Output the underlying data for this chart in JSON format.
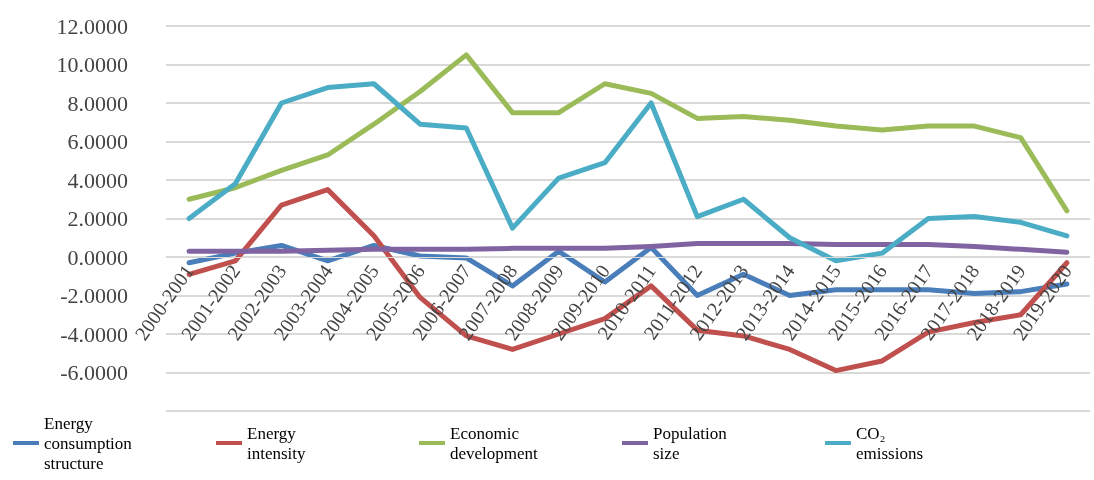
{
  "chart_data": {
    "type": "line",
    "categories": [
      "2000-2001",
      "2001-2002",
      "2002-2003",
      "2003-2004",
      "2004-2005",
      "2005-2006",
      "2006-2007",
      "2007-2008",
      "2008-2009",
      "2009-2010",
      "2010-2011",
      "2011-2012",
      "2012-2013",
      "2013-2014",
      "2014-2015",
      "2015-2016",
      "2016-2017",
      "2017-2018",
      "2018-2019",
      "2019-2020"
    ],
    "series": [
      {
        "name": "Energy consumption structure",
        "color": "#4a7ebb",
        "values": [
          -0.3,
          0.2,
          0.6,
          -0.2,
          0.6,
          0.05,
          -0.05,
          -1.5,
          0.3,
          -1.3,
          0.5,
          -2.0,
          -0.9,
          -2.0,
          -1.7,
          -1.7,
          -1.7,
          -1.9,
          -1.8,
          -1.4
        ]
      },
      {
        "name": "Energy intensity",
        "color": "#c0504d",
        "values": [
          -0.9,
          -0.2,
          2.7,
          3.5,
          1.1,
          -2.1,
          -4.1,
          -4.8,
          -4.0,
          -3.2,
          -1.5,
          -3.8,
          -4.1,
          -4.8,
          -5.9,
          -5.4,
          -3.9,
          -3.4,
          -3.0,
          -0.3
        ]
      },
      {
        "name": "Economic development",
        "color": "#9bbb59",
        "values": [
          3.0,
          3.6,
          4.5,
          5.3,
          6.9,
          8.6,
          10.5,
          7.5,
          7.5,
          9.0,
          8.5,
          7.2,
          7.3,
          7.1,
          6.8,
          6.6,
          6.8,
          6.8,
          6.2,
          2.4
        ]
      },
      {
        "name": "Population size",
        "color": "#8064a2",
        "values": [
          0.3,
          0.3,
          0.3,
          0.35,
          0.4,
          0.4,
          0.4,
          0.45,
          0.45,
          0.45,
          0.55,
          0.7,
          0.7,
          0.7,
          0.65,
          0.65,
          0.65,
          0.55,
          0.4,
          0.25
        ]
      },
      {
        "name": "CO₂ emissions",
        "color": "#4bacc6",
        "values": [
          2.0,
          3.8,
          8.0,
          8.8,
          9.0,
          6.9,
          6.7,
          1.5,
          4.1,
          4.9,
          8.0,
          2.1,
          3.0,
          1.0,
          -0.2,
          0.2,
          2.0,
          2.1,
          1.8,
          1.1
        ]
      }
    ],
    "ylim": [
      -8,
      12
    ],
    "yticks": [
      {
        "value": -8,
        "label": null
      },
      {
        "value": -6,
        "label": "-6.0000"
      },
      {
        "value": -4,
        "label": "-4.0000"
      },
      {
        "value": -2,
        "label": "-2.0000"
      },
      {
        "value": 0,
        "label": "0.0000"
      },
      {
        "value": 2,
        "label": "2.0000"
      },
      {
        "value": 4,
        "label": "4.0000"
      },
      {
        "value": 6,
        "label": "6.0000"
      },
      {
        "value": 8,
        "label": "8.0000"
      },
      {
        "value": 10,
        "label": "10.0000"
      },
      {
        "value": 12,
        "label": "12.0000"
      }
    ],
    "grid": "y",
    "legend": "bottom",
    "marker": "none",
    "line_style": "solid"
  }
}
